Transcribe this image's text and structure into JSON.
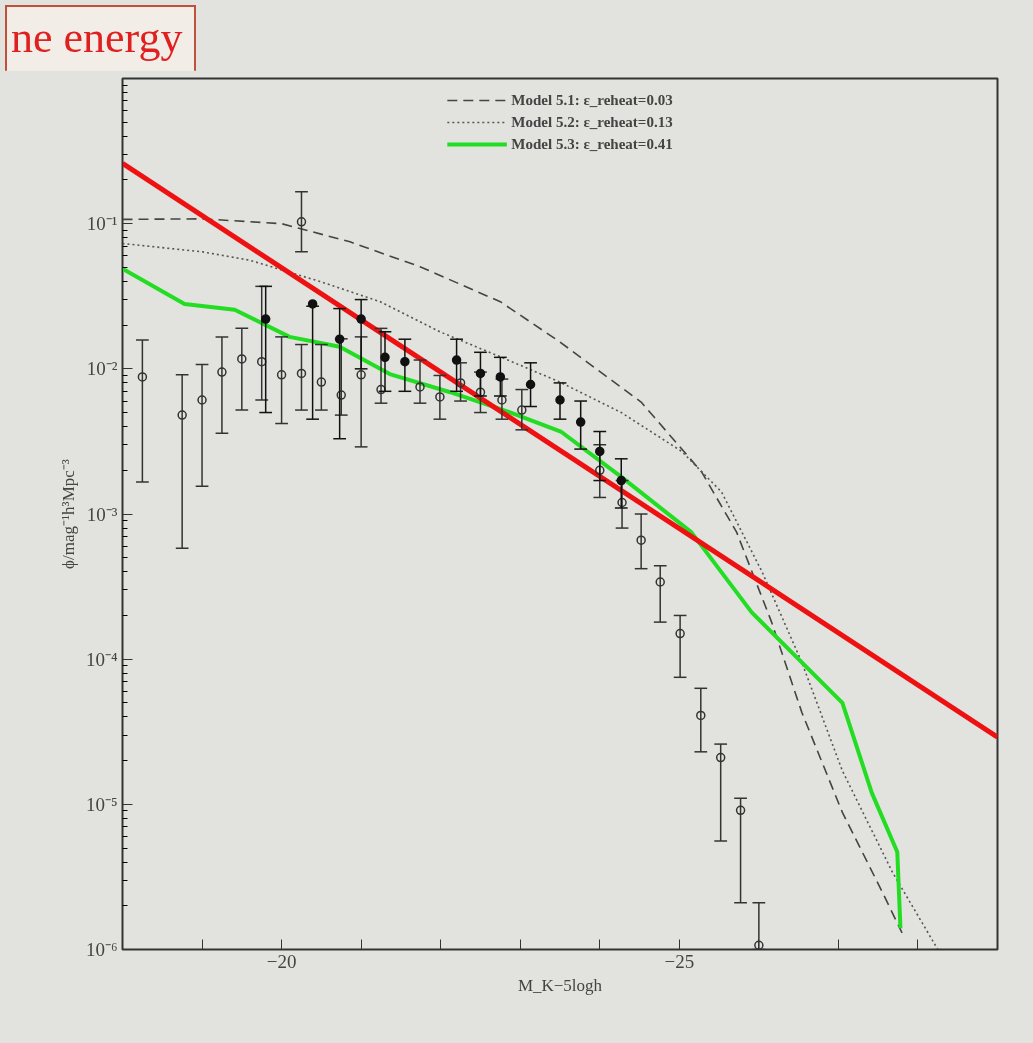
{
  "chart_data": {
    "type": "line",
    "xlabel": "M_K−5logh",
    "ylabel": "ϕ/mag⁻¹h³Mpc⁻³",
    "annotations": [
      "ne energy"
    ],
    "xlim": [
      -18,
      -29
    ],
    "ylim": [
      1e-06,
      1
    ],
    "log": "y",
    "grid": false,
    "legend": "top",
    "xticks": [
      {
        "value": -19,
        "label": null
      },
      {
        "value": -20,
        "label": "−20"
      },
      {
        "value": -21,
        "label": null
      },
      {
        "value": -22,
        "label": null
      },
      {
        "value": -23,
        "label": null
      },
      {
        "value": -24,
        "label": null
      },
      {
        "value": -25,
        "label": "−25"
      },
      {
        "value": -26,
        "label": null
      },
      {
        "value": -27,
        "label": null
      },
      {
        "value": -28,
        "label": null
      }
    ],
    "yticks": [
      {
        "value": 1e-06,
        "label": "10⁻⁶"
      },
      {
        "value": 1e-05,
        "label": "10⁻⁵"
      },
      {
        "value": 0.0001,
        "label": "10⁻⁴"
      },
      {
        "value": 0.001,
        "label": "10⁻³"
      },
      {
        "value": 0.01,
        "label": "10⁻²"
      },
      {
        "value": 0.1,
        "label": "10⁻¹"
      },
      {
        "value": 1,
        "label": null
      }
    ],
    "series": [
      {
        "name": "Model 5.1: ε_reheat=0.03",
        "color": "#444444",
        "line_style": "dashed",
        "x": [
          -18,
          -19,
          -20,
          -20.86,
          -21.74,
          -22.75,
          -23.5,
          -24.52,
          -25.28,
          -25.72,
          -26.16,
          -26.54,
          -27.05,
          -27.55,
          -27.8
        ],
        "values": [
          0.107,
          0.108,
          0.1,
          0.075,
          0.0505,
          0.029,
          0.0153,
          0.0059,
          0.00195,
          0.00075,
          0.00018,
          4.3e-05,
          8.8e-06,
          2.5e-06,
          1.3e-06
        ]
      },
      {
        "name": "Model 5.2: ε_reheat=0.13",
        "color": "#555555",
        "line_style": "dotted",
        "x": [
          -18,
          -19,
          -19.6,
          -20.48,
          -21.24,
          -21.99,
          -22.75,
          -23.5,
          -24.27,
          -25.03,
          -25.53,
          -26.04,
          -26.54,
          -27.05,
          -27.68,
          -28.25
        ],
        "values": [
          0.073,
          0.064,
          0.056,
          0.04,
          0.029,
          0.018,
          0.0121,
          0.0081,
          0.005,
          0.0027,
          0.00142,
          0.0004,
          9.5e-05,
          1.7e-05,
          3.4e-06,
          1e-06
        ]
      },
      {
        "name": "Model 5.3: ε_reheat=0.41",
        "color": "#22dd22",
        "line_style": "solid",
        "x": [
          -18,
          -18.78,
          -19.41,
          -20.1,
          -20.73,
          -21.36,
          -22.12,
          -22.88,
          -23.51,
          -24.27,
          -25.15,
          -25.91,
          -26.54,
          -27.05,
          -27.42,
          -27.74,
          -27.78
        ],
        "values": [
          0.049,
          0.028,
          0.0255,
          0.0166,
          0.0142,
          0.0092,
          0.0069,
          0.005,
          0.0037,
          0.0018,
          0.00075,
          0.00021,
          9.5e-05,
          5e-05,
          1.2e-05,
          4.7e-06,
          1.4e-06
        ]
      },
      {
        "color": "#ee1111",
        "line_style": "solid",
        "x": [
          -18,
          -29
        ],
        "values": [
          0.26,
          2.9e-05
        ]
      },
      {
        "type": "scatter",
        "marker": "circle",
        "color": "#333333",
        "x": [
          -18.25,
          -18.75,
          -19.0,
          -19.25,
          -19.5,
          -19.75,
          -20.0,
          -20.25,
          -20.25,
          -20.5,
          -20.75,
          -21.0,
          -21.25,
          -21.74,
          -21.99,
          -22.25,
          -22.5,
          -22.77,
          -23.02,
          -24.0,
          -24.28,
          -24.52,
          -24.76,
          -25.01,
          -25.27,
          -25.52,
          -25.77,
          -26.0
        ],
        "values": [
          0.0088,
          0.0048,
          0.0061,
          0.0095,
          0.0117,
          0.0112,
          0.0091,
          0.0093,
          0.103,
          0.0081,
          0.0066,
          0.0091,
          0.0072,
          0.0075,
          0.0064,
          0.008,
          0.0069,
          0.0061,
          0.0052,
          0.002,
          0.0012,
          0.00066,
          0.00034,
          0.00015,
          4.1e-05,
          2.1e-05,
          9.1e-06,
          1.07e-06
        ],
        "errors": [
          [
            0.00166,
            0.0158
          ],
          [
            0.00058,
            0.0091
          ],
          [
            0.00155,
            0.0107
          ],
          [
            0.0036,
            0.0166
          ],
          [
            0.0052,
            0.019
          ],
          [
            0.0061,
            0.037
          ],
          [
            0.0042,
            0.0166
          ],
          [
            0.0052,
            0.0147
          ],
          [
            0.064,
            0.166
          ],
          [
            0.0052,
            0.0147
          ],
          [
            0.0048,
            0.0161
          ],
          [
            0.0029,
            0.0166
          ],
          [
            0.0058,
            0.019
          ],
          [
            0.0058,
            0.0115
          ],
          [
            0.0045,
            0.009
          ],
          [
            0.006,
            0.011
          ],
          [
            0.005,
            0.0095
          ],
          [
            0.0045,
            0.0085
          ],
          [
            0.0038,
            0.0072
          ],
          [
            0.0013,
            0.003
          ],
          [
            0.0008,
            0.0017
          ],
          [
            0.00042,
            0.001
          ],
          [
            0.00018,
            0.00044
          ],
          [
            7.5e-05,
            0.0002
          ],
          [
            2.3e-05,
            6.3e-05
          ],
          [
            5.6e-06,
            2.6e-05
          ],
          [
            2.1e-06,
            1.1e-05
          ],
          [
            1e-06,
            2.1e-06
          ]
        ]
      },
      {
        "type": "scatter",
        "marker": "circle",
        "color": "#111111",
        "x": [
          -19.8,
          -20.39,
          -20.73,
          -21.0,
          -21.3,
          -21.55,
          -22.2,
          -22.5,
          -22.75,
          -23.13,
          -23.5,
          -23.76,
          -24.0,
          -24.27
        ],
        "values": [
          0.022,
          0.028,
          0.016,
          0.022,
          0.012,
          0.0112,
          0.0115,
          0.0093,
          0.0088,
          0.0078,
          0.0061,
          0.0043,
          0.0027,
          0.0017
        ],
        "errors": [
          [
            0.005,
            0.037
          ],
          [
            0.0045,
            0.027
          ],
          [
            0.0033,
            0.026
          ],
          [
            0.01,
            0.03
          ],
          [
            0.007,
            0.018
          ],
          [
            0.007,
            0.016
          ],
          [
            0.007,
            0.016
          ],
          [
            0.0065,
            0.013
          ],
          [
            0.0065,
            0.012
          ],
          [
            0.0055,
            0.011
          ],
          [
            0.0045,
            0.008
          ],
          [
            0.0028,
            0.006
          ],
          [
            0.0017,
            0.0037
          ],
          [
            0.0011,
            0.0024
          ]
        ]
      }
    ]
  }
}
